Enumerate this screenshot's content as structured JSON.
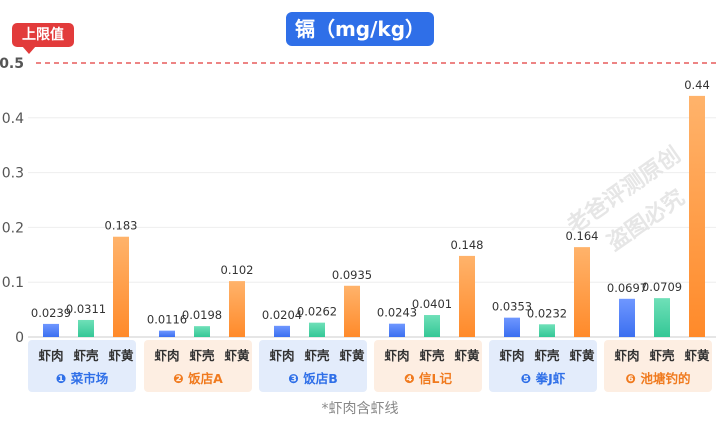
{
  "chart_data": {
    "type": "bar",
    "title": "镉（mg/kg）",
    "limit": {
      "label": "上限值",
      "value": 0.5
    },
    "ylim": [
      0,
      0.5
    ],
    "yticks": [
      "0",
      "0.1",
      "0.2",
      "0.3",
      "0.4",
      "0.5"
    ],
    "parts": [
      "虾肉",
      "虾壳",
      "虾黄"
    ],
    "groups": [
      {
        "label": "❶ 菜市场",
        "values": [
          0.0239,
          0.0311,
          0.183
        ],
        "labels": [
          "0.0239",
          "0.0311",
          "0.183"
        ]
      },
      {
        "label": "❷ 饭店A",
        "values": [
          0.0116,
          0.0198,
          0.102
        ],
        "labels": [
          "0.0116",
          "0.0198",
          "0.102"
        ]
      },
      {
        "label": "❸ 饭店B",
        "values": [
          0.0204,
          0.0262,
          0.0935
        ],
        "labels": [
          "0.0204",
          "0.0262",
          "0.0935"
        ]
      },
      {
        "label": "❹ 信L记",
        "values": [
          0.0243,
          0.0401,
          0.148
        ],
        "labels": [
          "0.0243",
          "0.0401",
          "0.148"
        ]
      },
      {
        "label": "❺ 拳J虾",
        "values": [
          0.0353,
          0.0232,
          0.164
        ],
        "labels": [
          "0.0353",
          "0.0232",
          "0.164"
        ]
      },
      {
        "label": "❻ 池塘钓的",
        "values": [
          0.0697,
          0.0709,
          0.44
        ],
        "labels": [
          "0.0697",
          "0.0709",
          "0.44"
        ]
      }
    ],
    "footnote": "*虾肉含虾线",
    "watermark": "老爸评测原创 盗图必究"
  },
  "colors": {
    "title_bg": "#2f6fe8",
    "limit": "#e23b3b",
    "shrimp_meat": "#3b6ff0",
    "shrimp_shell": "#34c796",
    "shrimp_roe": "#ff8a2a",
    "group_bg_blue": "#e3ecfb",
    "group_bg_orange": "#fdeee2",
    "group_text_blue": "#2f6fe8",
    "group_text_orange": "#f07a1e"
  }
}
